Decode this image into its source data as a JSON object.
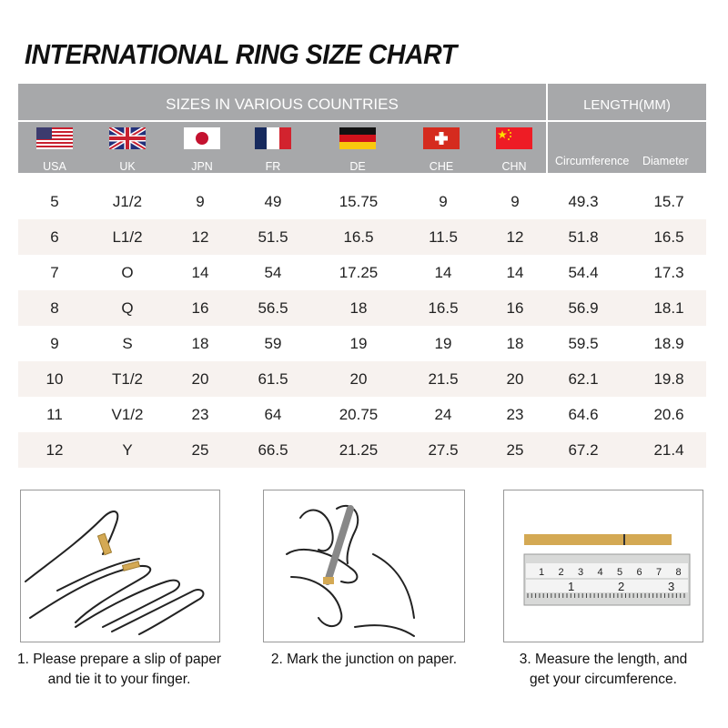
{
  "title": "INTERNATIONAL RING SIZE CHART",
  "header": {
    "sizes_title": "SIZES IN VARIOUS COUNTRIES",
    "length_title": "LENGTH(MM)",
    "countries": [
      "USA",
      "UK",
      "JPN",
      "FR",
      "DE",
      "CHE",
      "CHN"
    ],
    "length_cols": [
      "Circumference",
      "Diameter"
    ]
  },
  "colors": {
    "header_bg": "#a7a8aa",
    "row_alt": "#f7f2ef",
    "paper_strip": "#d4a954"
  },
  "rows": [
    [
      "5",
      "J1/2",
      "9",
      "49",
      "15.75",
      "9",
      "9",
      "49.3",
      "15.7"
    ],
    [
      "6",
      "L1/2",
      "12",
      "51.5",
      "16.5",
      "11.5",
      "12",
      "51.8",
      "16.5"
    ],
    [
      "7",
      "O",
      "14",
      "54",
      "17.25",
      "14",
      "14",
      "54.4",
      "17.3"
    ],
    [
      "8",
      "Q",
      "16",
      "56.5",
      "18",
      "16.5",
      "16",
      "56.9",
      "18.1"
    ],
    [
      "9",
      "S",
      "18",
      "59",
      "19",
      "19",
      "18",
      "59.5",
      "18.9"
    ],
    [
      "10",
      "T1/2",
      "20",
      "61.5",
      "20",
      "21.5",
      "20",
      "62.1",
      "19.8"
    ],
    [
      "11",
      "V1/2",
      "23",
      "64",
      "20.75",
      "24",
      "23",
      "64.6",
      "20.6"
    ],
    [
      "12",
      "Y",
      "25",
      "66.5",
      "21.25",
      "27.5",
      "25",
      "67.2",
      "21.4"
    ]
  ],
  "steps": [
    {
      "line1": "1. Please prepare a slip of paper",
      "line2": "and tie it to your finger."
    },
    {
      "line1": "2. Mark the junction on paper.",
      "line2": ""
    },
    {
      "line1": "3. Measure the length, and",
      "line2": "get your circumference."
    }
  ],
  "ruler": {
    "cm_ticks": [
      "1",
      "2",
      "3",
      "4",
      "5",
      "6",
      "7",
      "8"
    ],
    "inch_ticks": [
      "1",
      "2",
      "3"
    ]
  }
}
